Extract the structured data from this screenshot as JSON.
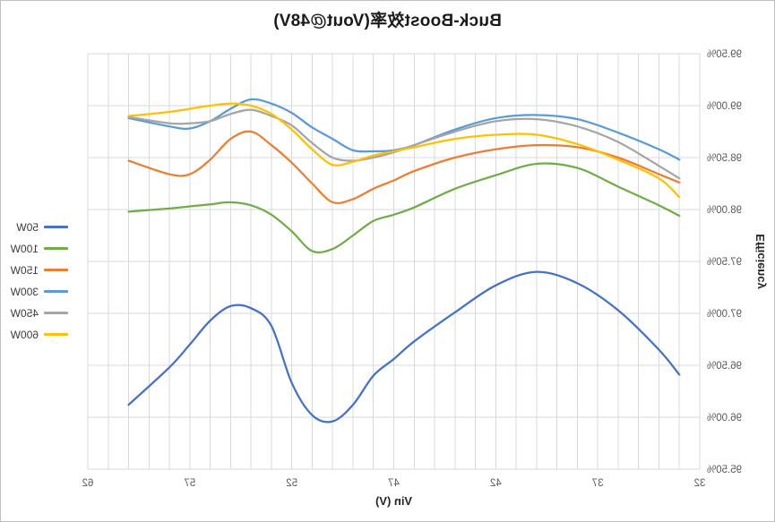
{
  "chart_data": {
    "type": "line",
    "title": "Buck-Boost效率(Vout@48V)",
    "xlabel": "Vin (V)",
    "ylabel": "Efficiency",
    "xlim": [
      32,
      62
    ],
    "ylim": [
      95.5,
      99.5
    ],
    "x_tick_values": [
      32,
      37,
      42,
      47,
      52,
      57,
      62
    ],
    "x_tick_labels": [
      "32",
      "37",
      "42",
      "47",
      "52",
      "57",
      "62"
    ],
    "y_tick_values": [
      99.5,
      99.0,
      98.5,
      98.0,
      97.5,
      97.0,
      96.5,
      96.0,
      95.5
    ],
    "y_tick_labels": [
      "99.50%",
      "99.00%",
      "98.50%",
      "98.00%",
      "97.50%",
      "97.00%",
      "96.50%",
      "96.00%",
      "95.50%"
    ],
    "grid": true,
    "x_minor_gridline_step": 1,
    "y_gridline_step": 0.5,
    "legend_position": "right",
    "mirrored_rendering": true,
    "x": [
      33,
      34,
      36,
      38,
      40,
      42,
      44,
      46,
      47,
      48,
      49,
      50,
      51,
      52,
      53,
      54,
      55,
      56,
      57,
      58,
      60
    ],
    "series": [
      {
        "name": "50W",
        "color": "#4472C4",
        "values": [
          96.41,
          96.65,
          97.03,
          97.29,
          97.4,
          97.27,
          97.01,
          96.73,
          96.56,
          96.4,
          96.12,
          95.96,
          96.02,
          96.33,
          96.88,
          97.05,
          97.07,
          96.93,
          96.7,
          96.48,
          96.12
        ]
      },
      {
        "name": "100W",
        "color": "#70AD47",
        "values": [
          97.94,
          98.04,
          98.22,
          98.4,
          98.44,
          98.33,
          98.2,
          98.02,
          97.95,
          97.89,
          97.75,
          97.62,
          97.6,
          97.79,
          97.95,
          98.04,
          98.07,
          98.05,
          98.03,
          98.01,
          97.98
        ]
      },
      {
        "name": "150W",
        "color": "#ED7D31",
        "values": [
          98.26,
          98.34,
          98.5,
          98.6,
          98.62,
          98.58,
          98.5,
          98.37,
          98.28,
          98.2,
          98.1,
          98.07,
          98.25,
          98.45,
          98.62,
          98.75,
          98.68,
          98.48,
          98.34,
          98.34,
          98.47
        ]
      },
      {
        "name": "300W",
        "color": "#5B9BD5",
        "values": [
          98.48,
          98.58,
          98.74,
          98.87,
          98.91,
          98.88,
          98.77,
          98.62,
          98.57,
          98.56,
          98.57,
          98.68,
          98.79,
          98.93,
          99.02,
          99.06,
          98.97,
          98.85,
          98.78,
          98.8,
          98.88
        ]
      },
      {
        "name": "450W",
        "color": "#A5A5A5",
        "values": [
          98.3,
          98.42,
          98.65,
          98.8,
          98.87,
          98.85,
          98.75,
          98.62,
          98.55,
          98.5,
          98.47,
          98.5,
          98.64,
          98.81,
          98.9,
          98.96,
          98.92,
          98.85,
          98.83,
          98.83,
          98.89
        ]
      },
      {
        "name": "600W",
        "color": "#FFC000",
        "values": [
          98.12,
          98.3,
          98.48,
          98.63,
          98.72,
          98.72,
          98.68,
          98.6,
          98.56,
          98.52,
          98.46,
          98.43,
          98.58,
          98.77,
          98.92,
          99.0,
          99.02,
          99.0,
          98.97,
          98.94,
          98.9
        ]
      }
    ],
    "colors": {
      "gridline": "#D9D9D9",
      "plot_border": "#D9D9D9",
      "tick_text": "#595959",
      "title_text": "#1A1A1A",
      "axis_title_text": "#262626",
      "legend_text": "#3B3B3B",
      "frame_border": "#BFBFBF",
      "background": "#FFFFFF"
    }
  }
}
